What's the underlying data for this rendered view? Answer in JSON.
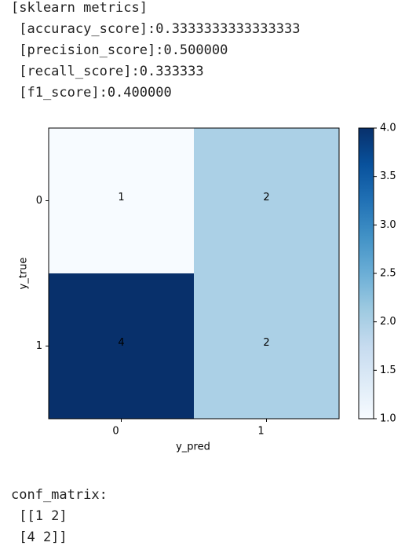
{
  "header_lines": [
    "[sklearn metrics]",
    " [accuracy_score]:0.3333333333333333",
    " [precision_score]:0.500000",
    " [recall_score]:0.333333",
    " [f1_score]:0.400000"
  ],
  "chart_data": {
    "type": "heatmap",
    "colormap": "Blues",
    "x_categories": [
      "0",
      "1"
    ],
    "y_categories": [
      "0",
      "1"
    ],
    "values": [
      [
        1,
        2
      ],
      [
        4,
        2
      ]
    ],
    "xlabel": "y_pred",
    "ylabel": "y_true",
    "zlim": [
      1,
      4
    ],
    "zticks": [
      {
        "value": 1,
        "label": "1.0"
      },
      {
        "value": 1.5,
        "label": "1.5"
      },
      {
        "value": 2,
        "label": "2.0"
      },
      {
        "value": 2.5,
        "label": "2.5"
      },
      {
        "value": 3,
        "label": "3.0"
      },
      {
        "value": 3.5,
        "label": "3.5"
      },
      {
        "value": 4,
        "label": "4.0"
      }
    ]
  },
  "footer_lines": [
    "conf_matrix:",
    " [[1 2]",
    " [4 2]]"
  ]
}
